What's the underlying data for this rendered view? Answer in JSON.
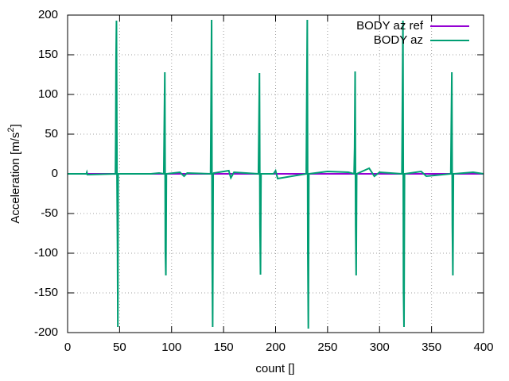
{
  "chart_data": {
    "type": "line",
    "xlabel": "count []",
    "ylabel_parts": [
      "Acceleration [m/s",
      "2",
      "]"
    ],
    "xlim": [
      0,
      400
    ],
    "xticks": [
      0,
      50,
      100,
      150,
      200,
      250,
      300,
      350,
      400
    ],
    "ylim": [
      -200,
      200
    ],
    "yticks": [
      -200,
      -150,
      -100,
      -50,
      0,
      50,
      100,
      150,
      200
    ],
    "grid": true,
    "legend": "top-right",
    "series": [
      {
        "name": "BODY az ref",
        "color": "#9400d3",
        "x": [
          0,
          400
        ],
        "values": [
          0,
          0
        ]
      },
      {
        "name": "BODY az",
        "color": "#009e73",
        "x": [
          0,
          18,
          18.5,
          19,
          46,
          46.3,
          46.6,
          47,
          47.5,
          48,
          48.3,
          48.6,
          49,
          80,
          88,
          92.5,
          93,
          93.5,
          94,
          94.5,
          95,
          108,
          112,
          115,
          137.5,
          138,
          138.5,
          139,
          139.5,
          140,
          140.5,
          155,
          157,
          160,
          183.5,
          184,
          184.5,
          185,
          185.5,
          186,
          198,
          200,
          202,
          229.5,
          230,
          230.5,
          231,
          231.5,
          232,
          250,
          270,
          275.5,
          276,
          276.5,
          277,
          277.5,
          278,
          290,
          295,
          300,
          321.5,
          322,
          322.5,
          323,
          323.5,
          324,
          340,
          345,
          368.5,
          369,
          369.5,
          370,
          370.5,
          371,
          390,
          400
        ],
        "values": [
          0,
          0,
          2,
          -1,
          0,
          50,
          145,
          193,
          0,
          -97,
          -193,
          0,
          0,
          0,
          1,
          0,
          65,
          128,
          -97,
          -128,
          0,
          2,
          -3,
          1,
          0,
          97,
          194,
          -97,
          -193,
          0,
          1,
          4,
          -5,
          2,
          0,
          63,
          127,
          -65,
          -127,
          0,
          0,
          4,
          -6,
          0,
          98,
          194,
          -98,
          -195,
          0,
          3,
          2,
          0,
          33,
          129,
          -65,
          -128,
          0,
          7,
          -3,
          2,
          0,
          98,
          193,
          -145,
          -193,
          0,
          3,
          -3,
          0,
          65,
          128,
          -65,
          -128,
          0,
          2,
          0
        ]
      }
    ]
  }
}
